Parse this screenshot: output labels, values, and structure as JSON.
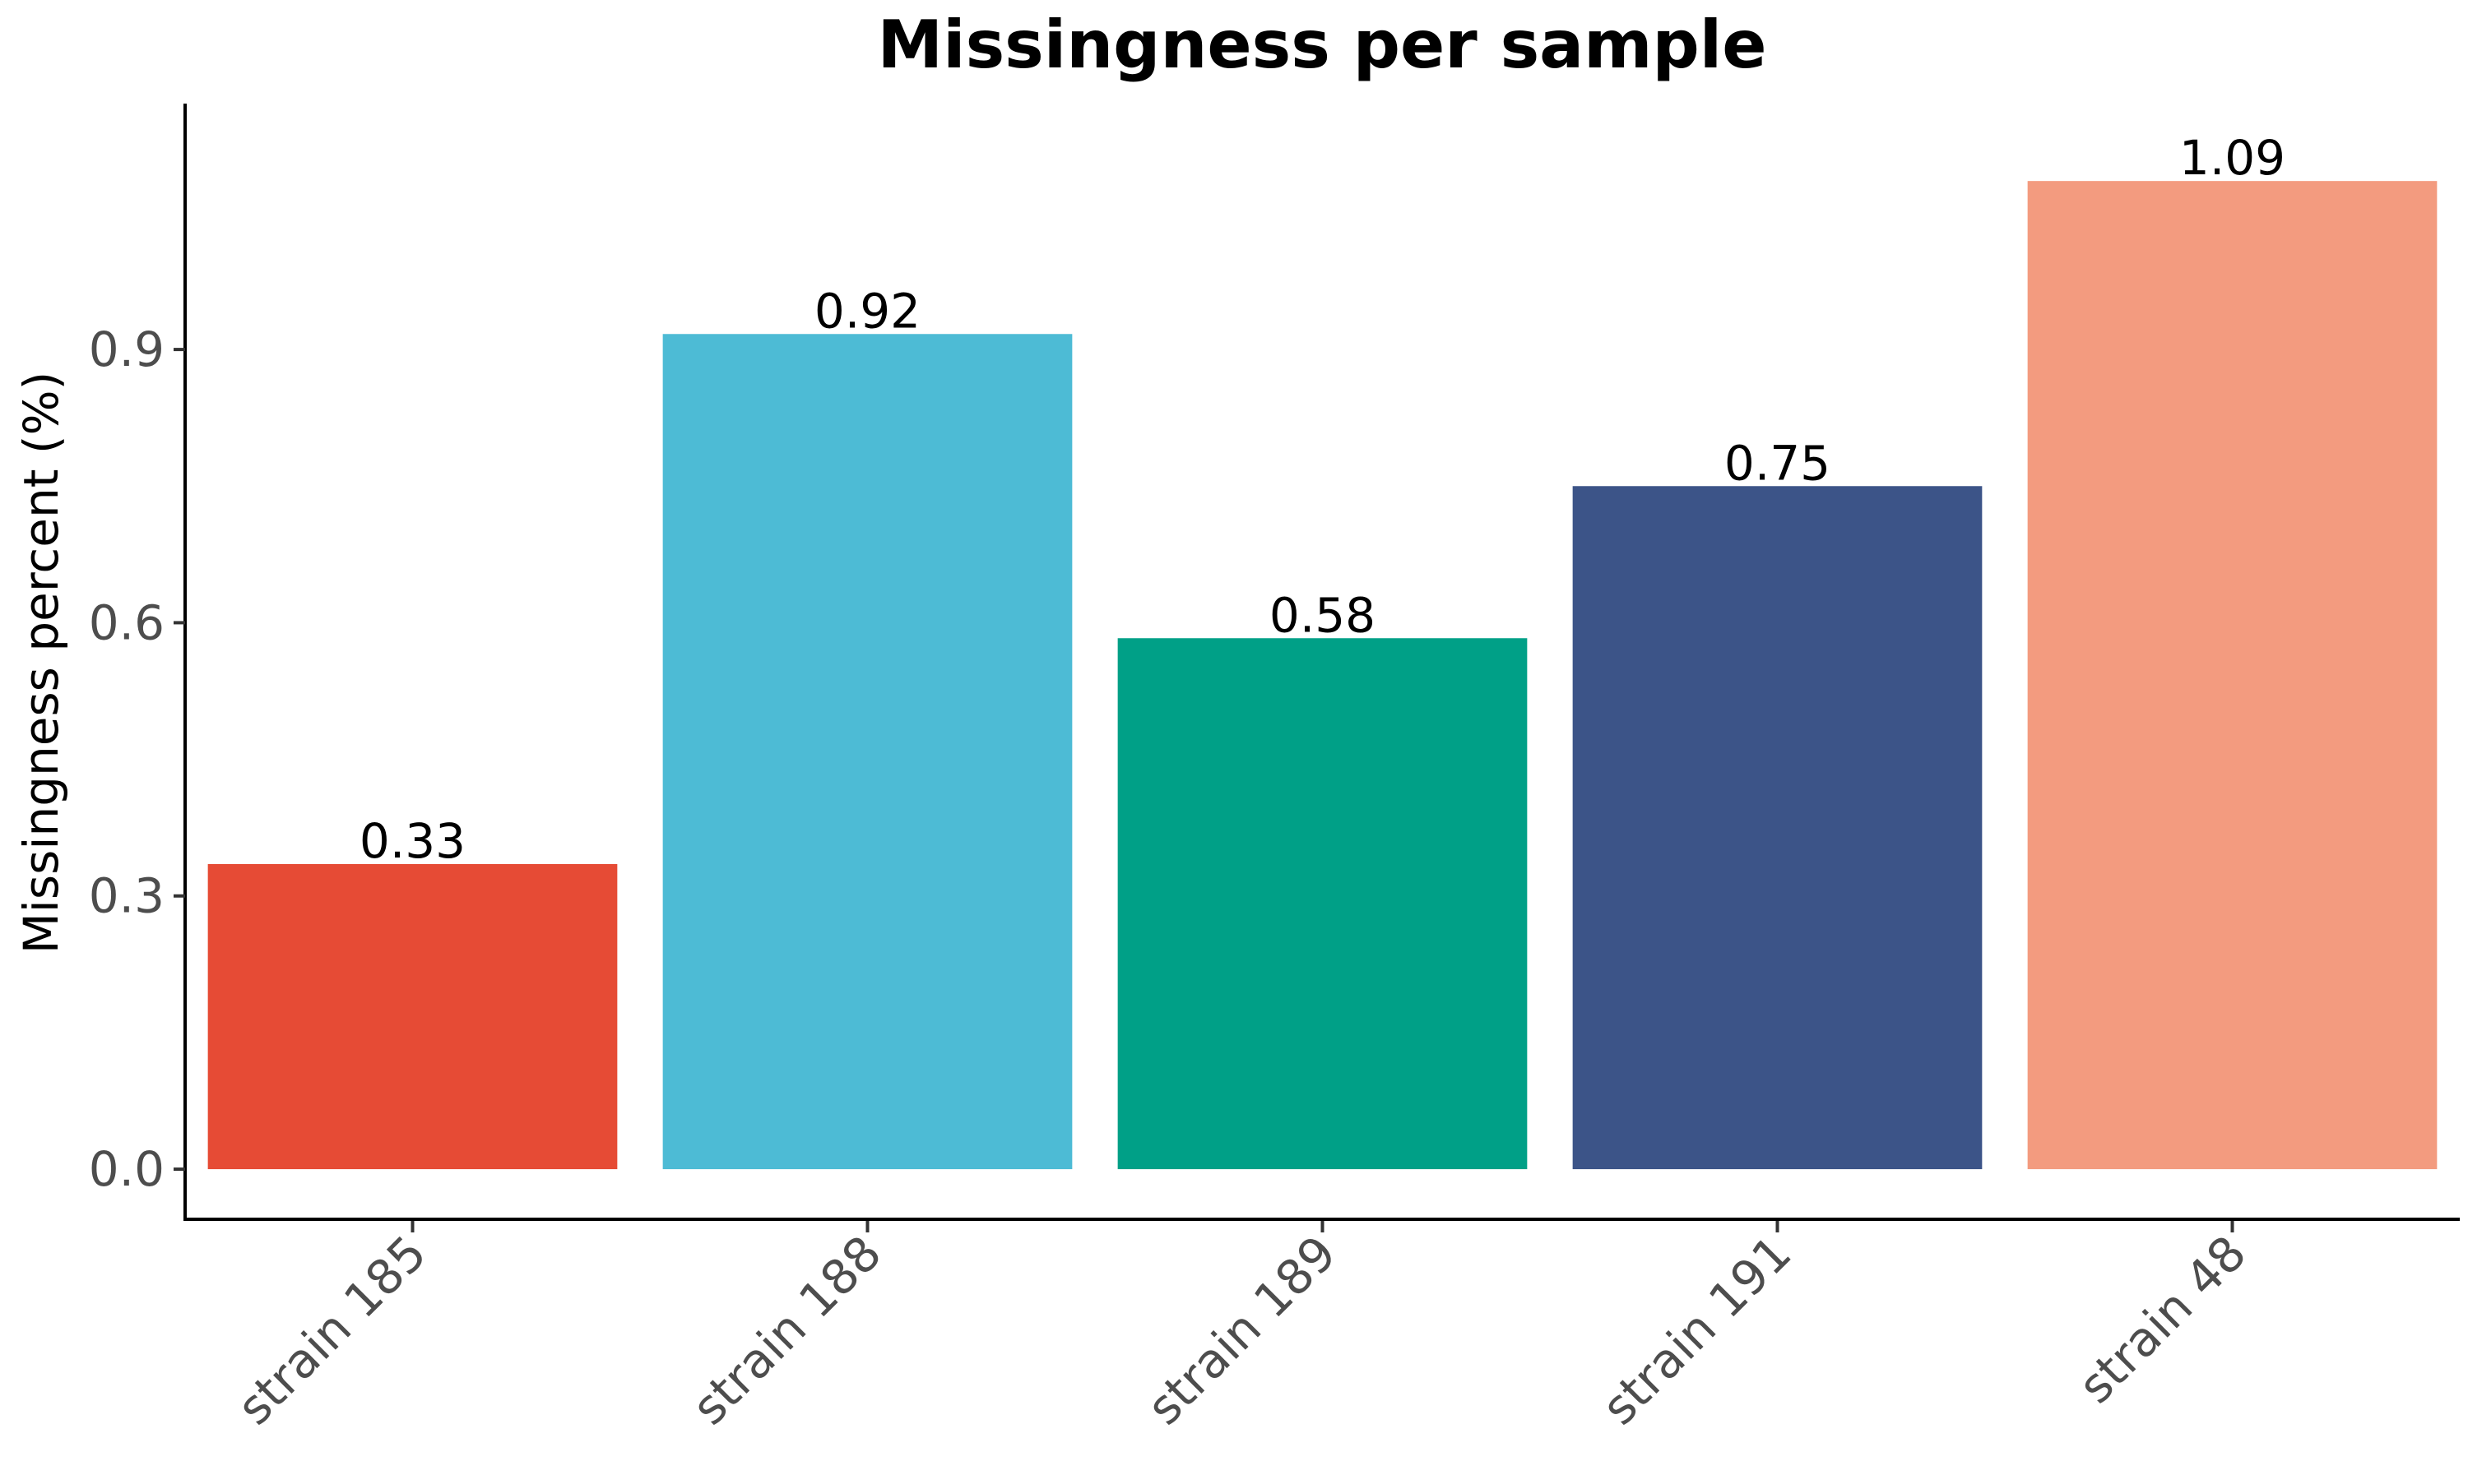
{
  "chart_data": {
    "type": "bar",
    "title": "Missingness per sample",
    "xlabel": "",
    "ylabel": "Missingness percent (%)",
    "categories": [
      "strain 185",
      "strain 188",
      "strain 189",
      "strain 191",
      "strain 48"
    ],
    "values": [
      0.335,
      0.917,
      0.583,
      0.75,
      1.085
    ],
    "data_labels": [
      "0.33",
      "0.92",
      "0.58",
      "0.75",
      "1.09"
    ],
    "bar_colors": [
      "#E64B35",
      "#4DBBD5",
      "#00A087",
      "#3C5488",
      "#F39B7F"
    ],
    "yticks": [
      0.0,
      0.3,
      0.6,
      0.9
    ],
    "ytick_labels": [
      "0.0",
      "0.3",
      "0.6",
      "0.9"
    ],
    "ylim": [
      -0.055,
      1.17
    ],
    "grid": false,
    "legend": "none"
  }
}
